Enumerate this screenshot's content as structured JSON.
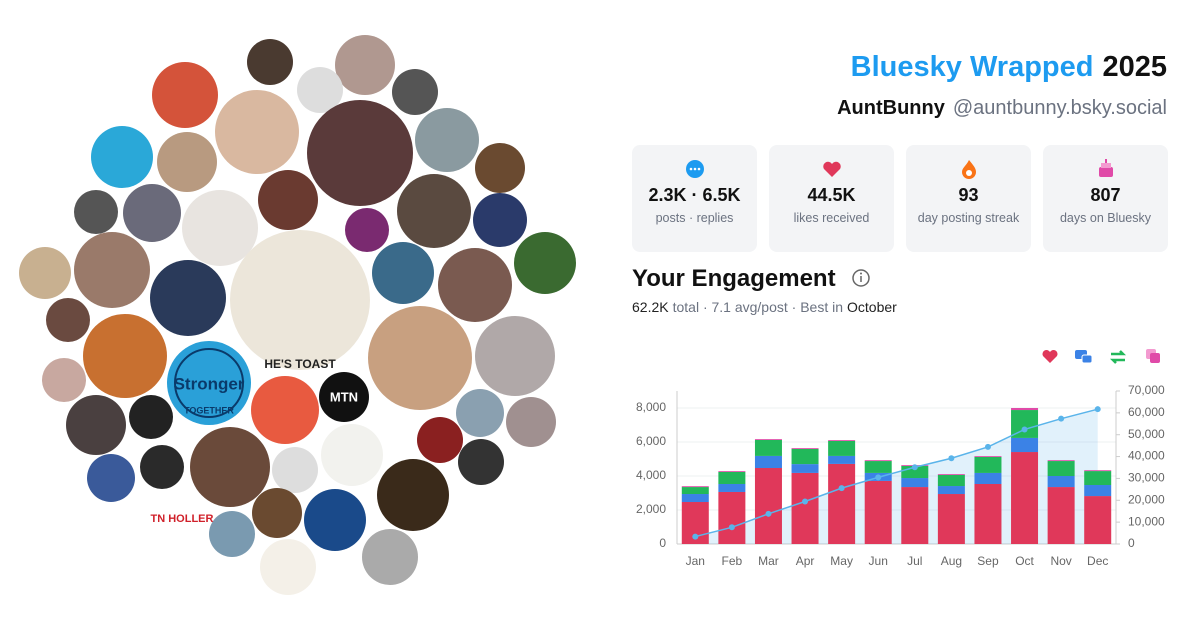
{
  "header": {
    "title": "Bluesky Wrapped",
    "year": "2025",
    "display_name": "AuntBunny",
    "handle": "@auntbunny.bsky.social"
  },
  "stats": [
    {
      "value": "2.3K · 6.5K",
      "label": "posts · replies"
    },
    {
      "value": "44.5K",
      "label": "likes received"
    },
    {
      "value": "93",
      "label": "day posting streak"
    },
    {
      "value": "807",
      "label": "days on Bluesky"
    }
  ],
  "engagement": {
    "title": "Your Engagement",
    "total": "62.2K",
    "summary": "total · 7.1 avg/post · Best in",
    "best_month": "October"
  },
  "avatar_texts": [
    "HE'S TOAST",
    "Stronger",
    "TOGETHER",
    "MTN",
    "TN HOLLER"
  ],
  "chart_data": {
    "type": "bar",
    "stacked": true,
    "grid": true,
    "categories": [
      "Jan",
      "Feb",
      "Mar",
      "Apr",
      "May",
      "Jun",
      "Jul",
      "Aug",
      "Sep",
      "Oct",
      "Nov",
      "Dec"
    ],
    "series": [
      {
        "color": "#e0385a",
        "values": [
          2470,
          3060,
          4470,
          4180,
          4710,
          3710,
          3350,
          2940,
          3530,
          5410,
          3350,
          2820
        ]
      },
      {
        "color": "#3b82e6",
        "values": [
          470,
          470,
          710,
          520,
          470,
          470,
          530,
          470,
          650,
          830,
          650,
          650
        ]
      },
      {
        "color": "#22b85a",
        "values": [
          410,
          710,
          940,
          890,
          880,
          700,
          710,
          650,
          940,
          1640,
          880,
          820
        ]
      },
      {
        "color": "#e04aa8",
        "values": [
          50,
          50,
          50,
          50,
          50,
          50,
          50,
          50,
          50,
          120,
          50,
          50
        ]
      },
      {
        "color": "#5ab4ea",
        "axis": "y2",
        "values": [
          3400,
          7640,
          13810,
          19450,
          25560,
          30490,
          35130,
          39240,
          44410,
          52410,
          57340,
          61680
        ]
      }
    ],
    "ylim": [
      0,
      9000
    ],
    "yticks": [
      0,
      {
        "value": 2000,
        "label": "2,000"
      },
      {
        "value": 4000,
        "label": "4,000"
      },
      {
        "value": 6000,
        "label": "6,000"
      },
      {
        "value": 8000,
        "label": "8,000"
      }
    ],
    "y2lim": [
      0,
      70000
    ],
    "y2ticks": [
      0,
      {
        "value": 10000,
        "label": "10,000"
      },
      {
        "value": 20000,
        "label": "20,000"
      },
      {
        "value": 30000,
        "label": "30,000"
      },
      {
        "value": 40000,
        "label": "40,000"
      },
      {
        "value": 50000,
        "label": "50,000"
      },
      {
        "value": 60000,
        "label": "60,000"
      },
      {
        "value": 70000,
        "label": "70,000"
      }
    ]
  }
}
